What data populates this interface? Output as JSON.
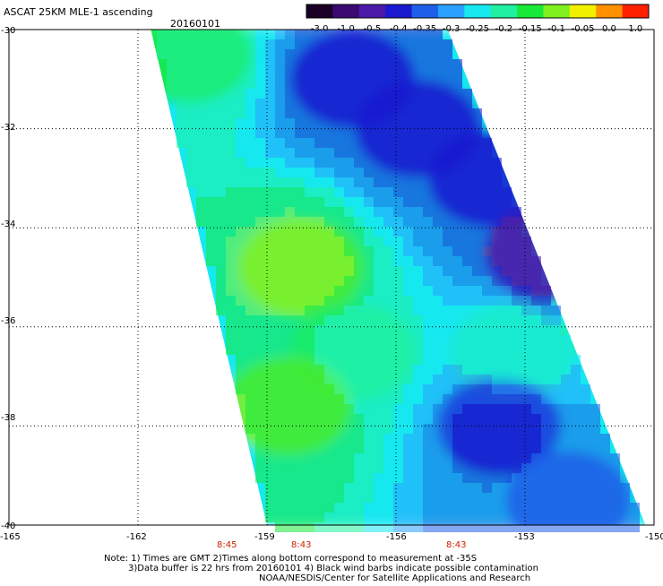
{
  "header": {
    "title": "ASCAT 25KM MLE-1 ascending",
    "date": "20160101"
  },
  "colorbar": {
    "labels": [
      "-3.0",
      "-1.0",
      "-0.5",
      "-0.4",
      "-0.35",
      "-0.3",
      "-0.25",
      "-0.2",
      "-0.15",
      "-0.1",
      "-0.05",
      "0.0",
      "1.0"
    ],
    "colors": [
      "#1a0026",
      "#3a0a70",
      "#4b1aa8",
      "#1a1ad0",
      "#1f5fe8",
      "#2aa0ff",
      "#18e8f0",
      "#20f0a0",
      "#18e838",
      "#80f020",
      "#f0f000",
      "#ff9000",
      "#ff2000"
    ]
  },
  "axes": {
    "lat_labels": [
      "-30",
      "-32",
      "-34",
      "-36",
      "-38",
      "-40"
    ],
    "lon_labels": [
      "-165",
      "-162",
      "-159",
      "-156",
      "-153",
      "-150"
    ],
    "grid": true,
    "grid_style": "dotted"
  },
  "times": [
    "8:45",
    "8:43",
    "8:43"
  ],
  "notes": {
    "line1": "Note: 1) Times are GMT 2)Times along bottom correspond to measurement at -35S",
    "line2": "3)Data buffer is 22 hrs from 20160101 4) Black wind barbs indicate possible contamination",
    "line3": "NOAA/NESDIS/Center for Satellite Applications and Research"
  },
  "chart_data": {
    "type": "heatmap",
    "title": "ASCAT 25KM MLE-1 ascending",
    "subtitle": "20160101",
    "lat_range": [
      -40,
      -30
    ],
    "lon_range": [
      -165,
      -150
    ],
    "swath": {
      "top_edge_lon": [
        -161.7,
        -154.8
      ],
      "bottom_edge_lon": [
        -159.0,
        -150.2
      ]
    },
    "value_scale": [
      -3.0,
      -1.0,
      -0.5,
      -0.4,
      -0.35,
      -0.3,
      -0.25,
      -0.2,
      -0.15,
      -0.1,
      -0.05,
      0.0,
      1.0
    ],
    "regions": [
      {
        "lat": -31,
        "lon": -157.0,
        "value": -0.4
      },
      {
        "lat": -32,
        "lon": -155.5,
        "value": -0.38
      },
      {
        "lat": -33,
        "lon": -153.8,
        "value": -0.37
      },
      {
        "lat": -34.5,
        "lon": -152.5,
        "value": -0.45
      },
      {
        "lat": -34.8,
        "lon": -158.2,
        "value": -0.08
      },
      {
        "lat": -36.5,
        "lon": -157.0,
        "value": -0.17
      },
      {
        "lat": -36.5,
        "lon": -153.3,
        "value": -0.2
      },
      {
        "lat": -37.6,
        "lon": -158.5,
        "value": -0.1
      },
      {
        "lat": -38.0,
        "lon": -153.6,
        "value": -0.37
      },
      {
        "lat": -39.5,
        "lon": -152.0,
        "value": -0.33
      },
      {
        "lat": -30.5,
        "lon": -160.8,
        "value": -0.15
      }
    ]
  }
}
